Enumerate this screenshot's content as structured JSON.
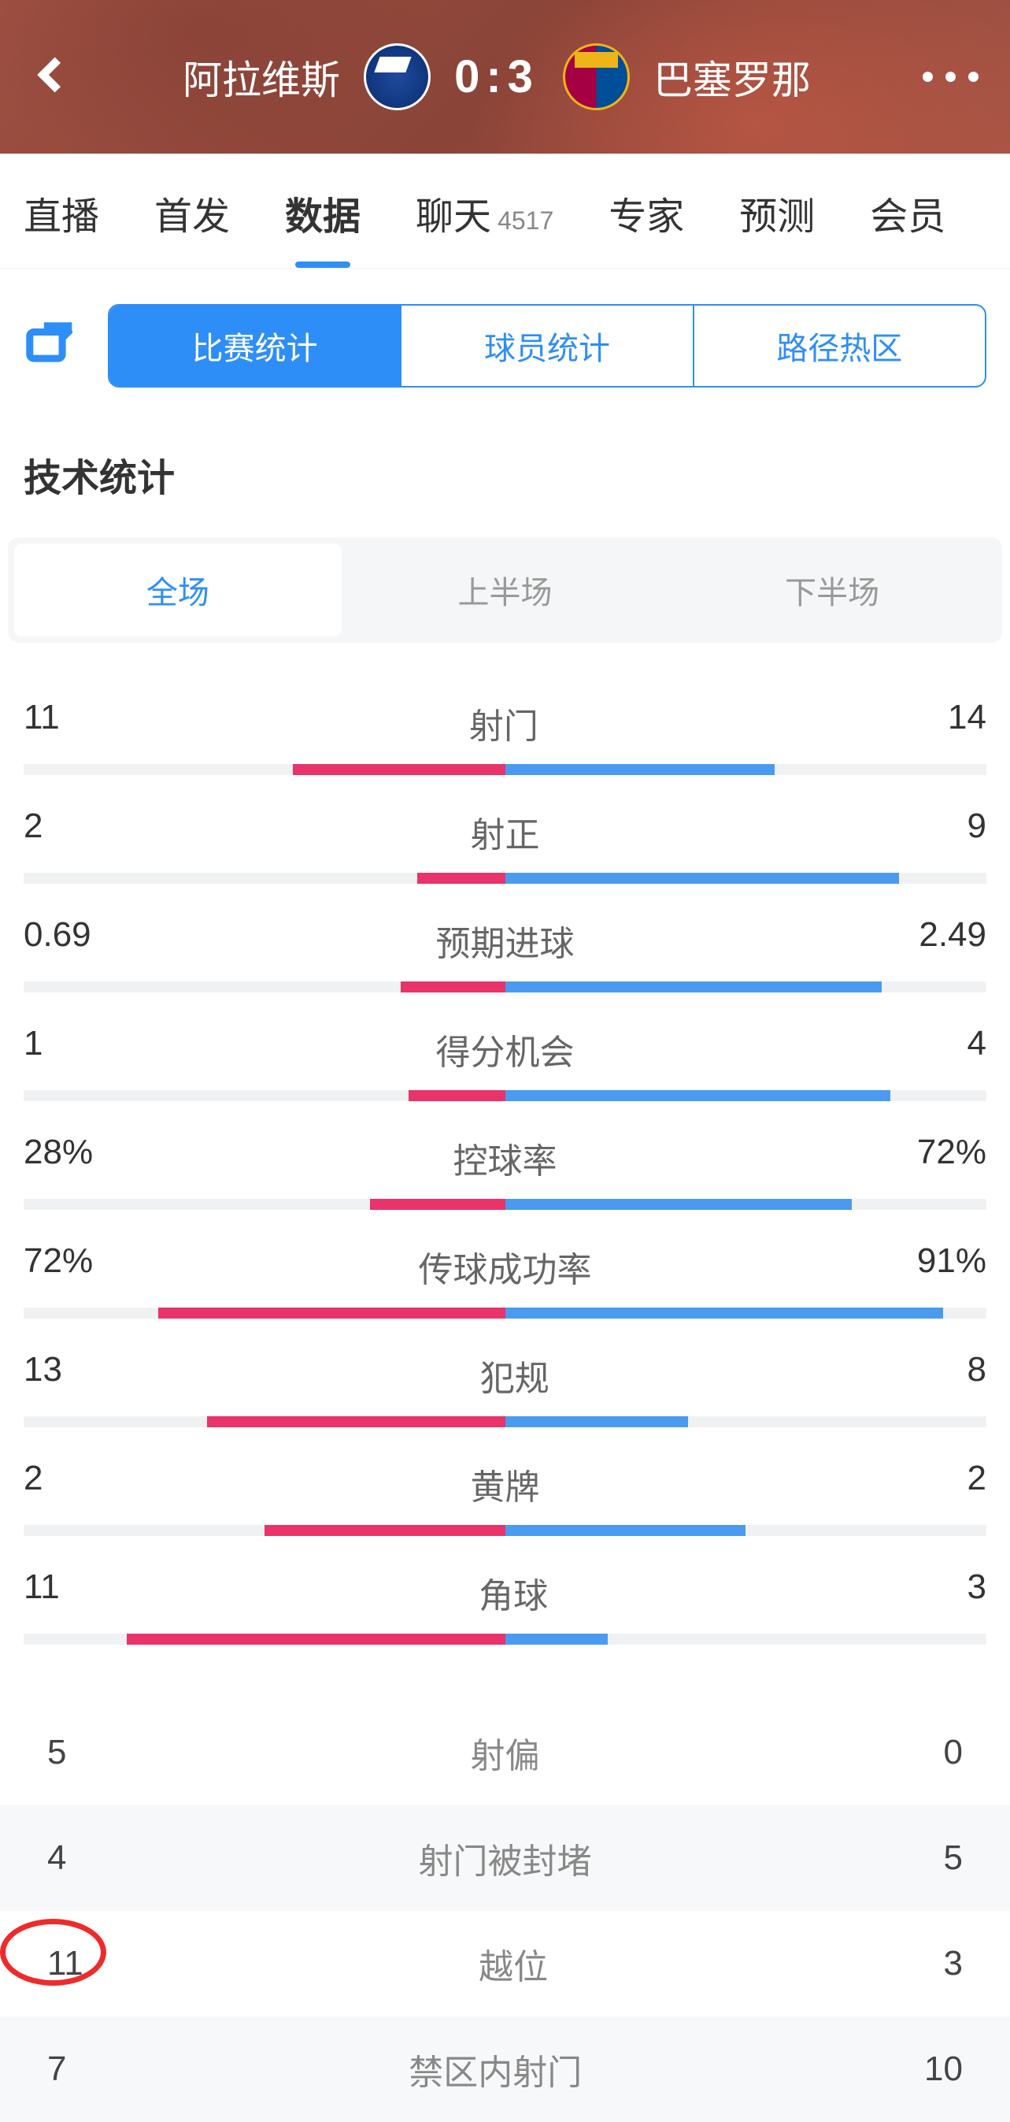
{
  "header": {
    "home_team": "阿拉维斯",
    "away_team": "巴塞罗那",
    "home_score": "0",
    "score_sep": ":",
    "away_score": "3"
  },
  "nav": {
    "tabs": [
      {
        "label": "直播",
        "active": false
      },
      {
        "label": "首发",
        "active": false
      },
      {
        "label": "数据",
        "active": true
      },
      {
        "label": "聊天",
        "count": "4517",
        "active": false
      },
      {
        "label": "专家",
        "active": false
      },
      {
        "label": "预测",
        "active": false
      },
      {
        "label": "会员",
        "active": false
      }
    ]
  },
  "subnav": {
    "items": [
      {
        "label": "比赛统计",
        "active": true
      },
      {
        "label": "球员统计",
        "active": false
      },
      {
        "label": "路径热区",
        "active": false
      }
    ]
  },
  "section_title": "技术统计",
  "period_tabs": [
    {
      "label": "全场",
      "active": true
    },
    {
      "label": "上半场",
      "active": false
    },
    {
      "label": "下半场",
      "active": false
    }
  ],
  "colors": {
    "home_bar": "#e8336b",
    "away_bar": "#4a9bf0",
    "bar_bg": "#f0f1f3",
    "accent": "#2e8ef7"
  },
  "bar_stats": [
    {
      "name": "射门",
      "home": "11",
      "away": "14",
      "home_pct": 44.0,
      "away_pct": 56.0
    },
    {
      "name": "射正",
      "home": "2",
      "away": "9",
      "home_pct": 18.2,
      "away_pct": 81.8
    },
    {
      "name": "预期进球",
      "home": "0.69",
      "away": "2.49",
      "home_pct": 21.7,
      "away_pct": 78.3
    },
    {
      "name": "得分机会",
      "home": "1",
      "away": "4",
      "home_pct": 20.0,
      "away_pct": 80.0
    },
    {
      "name": "控球率",
      "home": "28%",
      "away": "72%",
      "home_pct": 28.0,
      "away_pct": 72.0
    },
    {
      "name": "传球成功率",
      "home": "72%",
      "away": "91%",
      "home_pct": 72.0,
      "away_pct": 91.0,
      "independent": true
    },
    {
      "name": "犯规",
      "home": "13",
      "away": "8",
      "home_pct": 61.9,
      "away_pct": 38.1
    },
    {
      "name": "黄牌",
      "home": "2",
      "away": "2",
      "home_pct": 50.0,
      "away_pct": 50.0
    },
    {
      "name": "角球",
      "home": "11",
      "away": "3",
      "home_pct": 78.6,
      "away_pct": 21.4
    }
  ],
  "simple_stats": [
    {
      "name": "射偏",
      "home": "5",
      "away": "0"
    },
    {
      "name": "射门被封堵",
      "home": "4",
      "away": "5"
    },
    {
      "name": "越位",
      "home": "11",
      "away": "3",
      "circled": "home"
    },
    {
      "name": "禁区内射门",
      "home": "7",
      "away": "10"
    }
  ]
}
